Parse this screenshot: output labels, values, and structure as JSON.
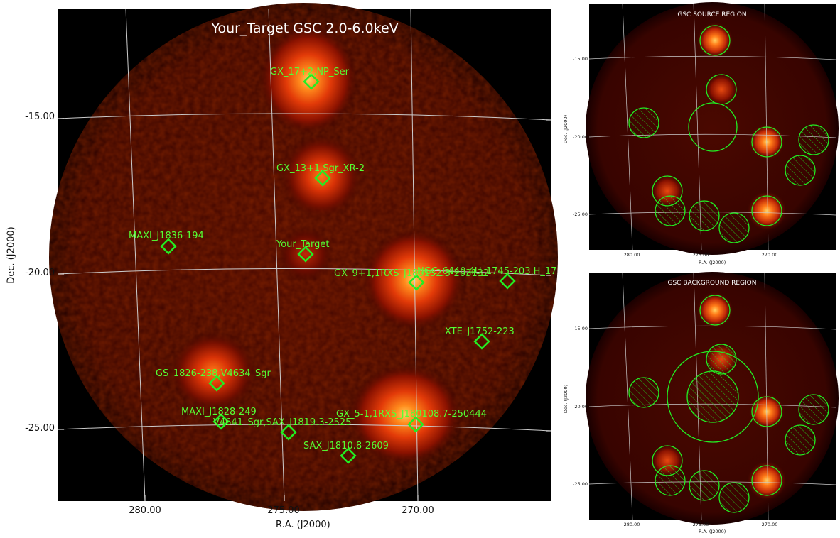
{
  "main_image": {
    "title": "Your_Target GSC 2.0-6.0keV",
    "xlabel": "R.A. (J2000)",
    "ylabel": "Dec. (J2000)",
    "xticks": [
      "280.00",
      "275.00",
      "270.00"
    ],
    "yticks": [
      "-15.00",
      "-20.00",
      "-25.00"
    ],
    "sources": [
      {
        "label": "GX_17+2,NP_Ser"
      },
      {
        "label": "GX_13+1,Sgr_XR-2"
      },
      {
        "label": "MAXI_J1836-194"
      },
      {
        "label": "Your_Target"
      },
      {
        "label": "GX_9+1,1RXS_J180132.3-203132"
      },
      {
        "label": "NGC_6440,4U_1745-203,H_17"
      },
      {
        "label": "XTE_J1752-223"
      },
      {
        "label": "GS_1826-238,V4634_Sgr"
      },
      {
        "label": "MAXI_J1828-249"
      },
      {
        "label": "V4641_Sgr,SAX_J1819.3-2525"
      },
      {
        "label": "GX_5-1,1RXS_J180108.7-250444"
      },
      {
        "label": "SAX_J1810.8-2609"
      }
    ]
  },
  "source_region": {
    "title": "GSC SOURCE REGION",
    "xlabel": "R.A. (J2000)",
    "ylabel": "Dec. (J2000)",
    "xticks": [
      "280.00",
      "275.00",
      "270.00"
    ],
    "yticks": [
      "-15.00",
      "-20.00",
      "-25.00"
    ]
  },
  "background_region": {
    "title": "GSC BACKGROUND REGION",
    "xlabel": "R.A. (J2000)",
    "ylabel": "Dec. (J2000)",
    "xticks": [
      "280.00",
      "275.00",
      "270.00"
    ],
    "yticks": [
      "-15.00",
      "-20.00",
      "-25.00"
    ]
  },
  "colors": {
    "marker": "#22ee22",
    "label": "#55ff33",
    "title": "#ffffff",
    "grid": "#cccccc",
    "glow_core": "#ffee88",
    "glow_mid": "#ff5a10",
    "glow_outer": "#a01000",
    "field": "#3a0400"
  }
}
